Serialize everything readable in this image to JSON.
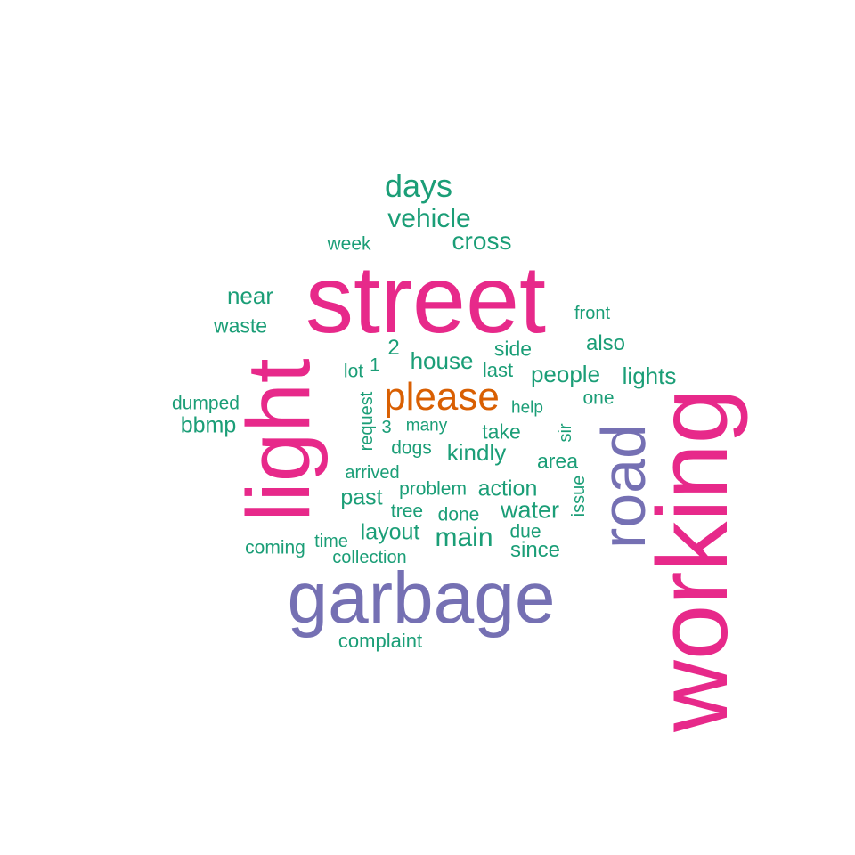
{
  "palette": {
    "green": "#1b9e77",
    "pink": "#e7298a",
    "purple": "#7570b3",
    "orange": "#d95f02"
  },
  "words": [
    {
      "text": "street",
      "color": "pink"
    },
    {
      "text": "working",
      "color": "pink"
    },
    {
      "text": "light",
      "color": "pink"
    },
    {
      "text": "garbage",
      "color": "purple"
    },
    {
      "text": "road",
      "color": "purple"
    },
    {
      "text": "please",
      "color": "orange"
    },
    {
      "text": "days",
      "color": "green"
    },
    {
      "text": "vehicle",
      "color": "green"
    },
    {
      "text": "cross",
      "color": "green"
    },
    {
      "text": "week",
      "color": "green"
    },
    {
      "text": "near",
      "color": "green"
    },
    {
      "text": "waste",
      "color": "green"
    },
    {
      "text": "front",
      "color": "green"
    },
    {
      "text": "also",
      "color": "green"
    },
    {
      "text": "2",
      "color": "green"
    },
    {
      "text": "house",
      "color": "green"
    },
    {
      "text": "side",
      "color": "green"
    },
    {
      "text": "lot",
      "color": "green"
    },
    {
      "text": "1",
      "color": "green"
    },
    {
      "text": "last",
      "color": "green"
    },
    {
      "text": "people",
      "color": "green"
    },
    {
      "text": "lights",
      "color": "green"
    },
    {
      "text": "one",
      "color": "green"
    },
    {
      "text": "help",
      "color": "green"
    },
    {
      "text": "dumped",
      "color": "green"
    },
    {
      "text": "bbmp",
      "color": "green"
    },
    {
      "text": "request",
      "color": "green"
    },
    {
      "text": "3",
      "color": "green"
    },
    {
      "text": "many",
      "color": "green"
    },
    {
      "text": "take",
      "color": "green"
    },
    {
      "text": "sir",
      "color": "green"
    },
    {
      "text": "dogs",
      "color": "green"
    },
    {
      "text": "kindly",
      "color": "green"
    },
    {
      "text": "area",
      "color": "green"
    },
    {
      "text": "arrived",
      "color": "green"
    },
    {
      "text": "issue",
      "color": "green"
    },
    {
      "text": "past",
      "color": "green"
    },
    {
      "text": "problem",
      "color": "green"
    },
    {
      "text": "action",
      "color": "green"
    },
    {
      "text": "tree",
      "color": "green"
    },
    {
      "text": "done",
      "color": "green"
    },
    {
      "text": "water",
      "color": "green"
    },
    {
      "text": "layout",
      "color": "green"
    },
    {
      "text": "main",
      "color": "green"
    },
    {
      "text": "due",
      "color": "green"
    },
    {
      "text": "time",
      "color": "green"
    },
    {
      "text": "coming",
      "color": "green"
    },
    {
      "text": "since",
      "color": "green"
    },
    {
      "text": "collection",
      "color": "green"
    },
    {
      "text": "complaint",
      "color": "green"
    }
  ]
}
